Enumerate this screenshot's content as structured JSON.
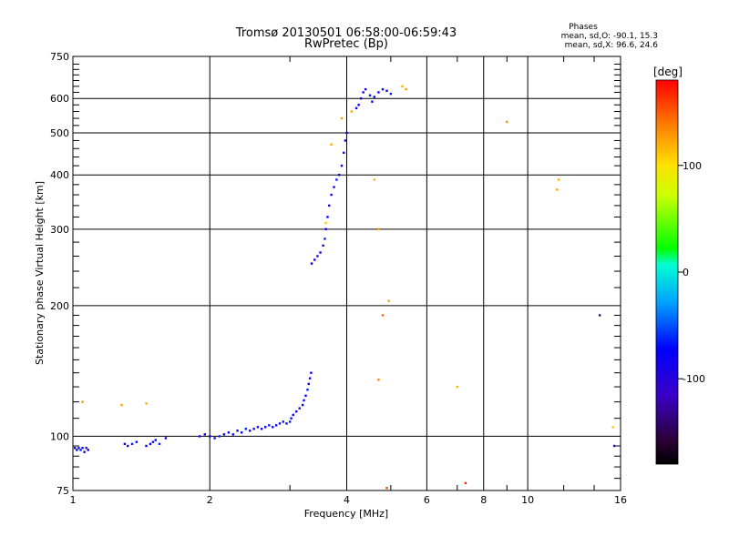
{
  "chart_data": {
    "type": "scatter",
    "title": "Tromsø 20130501 06:58:00-06:59:43",
    "subtitle": "RwPretec (Bp)",
    "xlabel": "Frequency [MHz]",
    "ylabel": "Stationary phase Virtual Height [km]",
    "x_scale": "log",
    "y_scale": "log",
    "xlim": [
      1,
      16
    ],
    "ylim": [
      75,
      750
    ],
    "x_ticks": [
      1,
      2,
      4,
      6,
      8,
      10,
      16
    ],
    "x_tick_labels": [
      "1",
      "2",
      "4",
      "6",
      "8",
      "10",
      "16"
    ],
    "x_minor_ticks": [
      3,
      5,
      7,
      9,
      12,
      14
    ],
    "y_ticks": [
      75,
      100,
      200,
      300,
      400,
      500,
      600,
      750
    ],
    "y_tick_labels": [
      "75",
      "100",
      "200",
      "300",
      "400",
      "500",
      "600",
      "750"
    ],
    "y_minor_ticks": [
      80,
      85,
      90,
      95,
      110,
      120,
      130,
      140,
      150,
      160,
      170,
      180,
      190,
      220,
      240,
      260,
      280,
      320,
      340,
      360,
      380,
      420,
      440,
      460,
      480,
      520,
      540,
      560,
      580,
      620,
      640,
      660,
      680,
      700,
      720
    ],
    "grid": true,
    "stats": {
      "header": "Phases",
      "o_line": "mean, sd,O: -90.1, 15.3",
      "x_line": "mean, sd,X:  96.6, 24.6"
    },
    "colorbar": {
      "label": "[deg]",
      "range": [
        -180,
        180
      ],
      "ticks": [
        100,
        0,
        -100
      ],
      "tick_labels": [
        "100",
        "0",
        "-100"
      ],
      "colormap": "rainbow"
    },
    "series": [
      {
        "points": [
          [
            1.01,
            94,
            -95
          ],
          [
            1.02,
            93,
            -90
          ],
          [
            1.03,
            94,
            -100
          ],
          [
            1.04,
            93,
            -85
          ],
          [
            1.05,
            94,
            -95
          ],
          [
            1.06,
            92,
            -90
          ],
          [
            1.07,
            94,
            -100
          ],
          [
            1.08,
            93,
            -95
          ],
          [
            1.3,
            96,
            -90
          ],
          [
            1.32,
            95,
            -100
          ],
          [
            1.35,
            96,
            -85
          ],
          [
            1.38,
            97,
            -95
          ],
          [
            1.45,
            95,
            -90
          ],
          [
            1.48,
            96,
            -100
          ],
          [
            1.5,
            97,
            -95
          ],
          [
            1.52,
            98,
            -90
          ],
          [
            1.55,
            96,
            -85
          ],
          [
            1.6,
            99,
            -95
          ],
          [
            1.9,
            100,
            -90
          ],
          [
            1.95,
            101,
            -95
          ],
          [
            2.0,
            100,
            -100
          ],
          [
            2.05,
            99,
            -90
          ],
          [
            2.1,
            100,
            -85
          ],
          [
            2.15,
            101,
            -95
          ],
          [
            2.2,
            102,
            -90
          ],
          [
            2.25,
            101,
            -100
          ],
          [
            2.3,
            103,
            -95
          ],
          [
            2.35,
            102,
            -90
          ],
          [
            2.4,
            104,
            -85
          ],
          [
            2.45,
            103,
            -95
          ],
          [
            2.5,
            104,
            -90
          ],
          [
            2.55,
            105,
            -100
          ],
          [
            2.6,
            104,
            -95
          ],
          [
            2.65,
            105,
            -90
          ],
          [
            2.7,
            106,
            -85
          ],
          [
            2.75,
            105,
            -95
          ],
          [
            2.8,
            106,
            -90
          ],
          [
            2.85,
            107,
            -100
          ],
          [
            2.9,
            108,
            -95
          ],
          [
            2.95,
            107,
            -90
          ],
          [
            3.0,
            108,
            -85
          ],
          [
            3.02,
            110,
            -95
          ],
          [
            3.05,
            112,
            -90
          ],
          [
            3.1,
            114,
            -95
          ],
          [
            3.15,
            116,
            -100
          ],
          [
            3.2,
            118,
            -90
          ],
          [
            3.22,
            121,
            -95
          ],
          [
            3.25,
            124,
            -90
          ],
          [
            3.28,
            128,
            -85
          ],
          [
            3.3,
            132,
            -95
          ],
          [
            3.32,
            136,
            -100
          ],
          [
            3.34,
            140,
            -90
          ],
          [
            3.35,
            250,
            -95
          ],
          [
            3.4,
            255,
            -90
          ],
          [
            3.45,
            260,
            -100
          ],
          [
            3.5,
            265,
            -95
          ],
          [
            3.55,
            275,
            -90
          ],
          [
            3.58,
            285,
            -85
          ],
          [
            3.6,
            300,
            -95
          ],
          [
            3.63,
            320,
            -90
          ],
          [
            3.66,
            340,
            -100
          ],
          [
            3.7,
            360,
            -95
          ],
          [
            3.75,
            375,
            -90
          ],
          [
            3.8,
            390,
            -85
          ],
          [
            3.85,
            400,
            -95
          ],
          [
            3.9,
            420,
            -90
          ],
          [
            3.94,
            450,
            -100
          ],
          [
            3.97,
            480,
            -95
          ],
          [
            4.0,
            500,
            -90
          ],
          [
            4.2,
            570,
            -95
          ],
          [
            4.25,
            580,
            -90
          ],
          [
            4.3,
            600,
            -100
          ],
          [
            4.35,
            620,
            -95
          ],
          [
            4.4,
            630,
            -90
          ],
          [
            4.5,
            610,
            -85
          ],
          [
            4.55,
            590,
            -95
          ],
          [
            4.6,
            605,
            -90
          ],
          [
            4.7,
            620,
            -100
          ],
          [
            4.8,
            630,
            -95
          ],
          [
            4.9,
            625,
            -90
          ],
          [
            5.0,
            615,
            -85
          ],
          [
            1.05,
            120,
            130
          ],
          [
            1.28,
            118,
            125
          ],
          [
            1.45,
            119,
            120
          ],
          [
            3.6,
            310,
            110
          ],
          [
            3.7,
            470,
            125
          ],
          [
            3.9,
            540,
            130
          ],
          [
            4.1,
            560,
            125
          ],
          [
            4.6,
            390,
            120
          ],
          [
            4.7,
            300,
            130
          ],
          [
            4.95,
            205,
            125
          ],
          [
            5.3,
            640,
            120
          ],
          [
            5.4,
            630,
            130
          ],
          [
            7.0,
            130,
            120
          ],
          [
            9.0,
            530,
            130
          ],
          [
            11.6,
            370,
            125
          ],
          [
            11.7,
            390,
            120
          ],
          [
            15.4,
            105,
            110
          ],
          [
            4.8,
            190,
            150
          ],
          [
            4.7,
            135,
            140
          ],
          [
            15.5,
            95,
            -110
          ],
          [
            14.4,
            190,
            -130
          ],
          [
            7.3,
            78,
            170
          ],
          [
            4.9,
            76,
            160
          ]
        ]
      }
    ]
  }
}
